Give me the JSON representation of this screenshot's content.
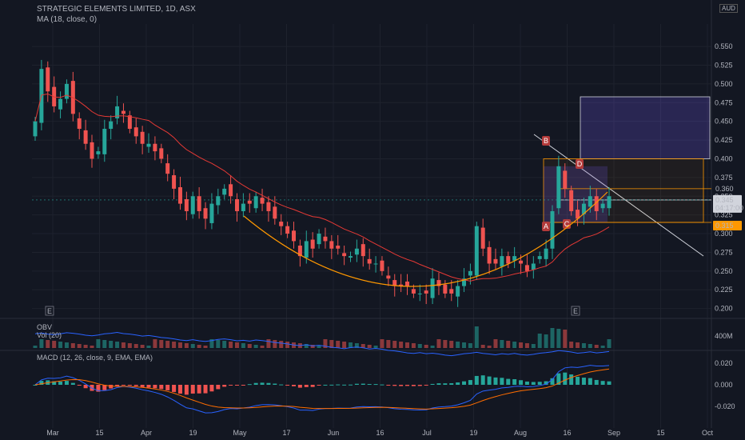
{
  "header": {
    "symbol_line": "STRATEGIC ELEMENTS LIMITED, 1D, ASX",
    "ma_line": "MA (18, close, 0)",
    "obv_label": "OBV",
    "vol_label": "Vol (20)",
    "macd_label": "MACD (12, 26, close, 9, EMA, EMA)",
    "currency": "AUD"
  },
  "price_badges": {
    "high": "0.360",
    "last": "0.345",
    "countdown": "04:17:00",
    "low": "0.315"
  },
  "pattern_labels": [
    "A",
    "B",
    "C",
    "D"
  ],
  "event_markers": [
    "E",
    "E"
  ],
  "pane_ticks": {
    "volume": [
      "400M"
    ],
    "macd": [
      "0.020",
      "0.000",
      "-0.020"
    ]
  },
  "chart_data": {
    "type": "candlestick",
    "title": "STRATEGIC ELEMENTS LIMITED, 1D, ASX",
    "y_axis": {
      "min": 0.19,
      "max": 0.58,
      "ticks": [
        "0.200",
        "0.225",
        "0.250",
        "0.275",
        "0.300",
        "0.325",
        "0.350",
        "0.375",
        "0.400",
        "0.425",
        "0.450",
        "0.475",
        "0.500",
        "0.525",
        "0.550"
      ]
    },
    "x_axis": {
      "ticks": [
        "Mar",
        "15",
        "Apr",
        "19",
        "May",
        "17",
        "Jun",
        "16",
        "Jul",
        "19",
        "Aug",
        "16",
        "Sep",
        "15",
        "Oct"
      ]
    },
    "closes": [
      0.45,
      0.52,
      0.49,
      0.47,
      0.48,
      0.5,
      0.46,
      0.44,
      0.42,
      0.4,
      0.41,
      0.44,
      0.45,
      0.47,
      0.46,
      0.44,
      0.43,
      0.42,
      0.42,
      0.41,
      0.4,
      0.38,
      0.36,
      0.34,
      0.33,
      0.35,
      0.33,
      0.32,
      0.34,
      0.35,
      0.36,
      0.35,
      0.33,
      0.34,
      0.34,
      0.35,
      0.34,
      0.33,
      0.32,
      0.31,
      0.3,
      0.29,
      0.27,
      0.29,
      0.28,
      0.3,
      0.29,
      0.28,
      0.28,
      0.27,
      0.27,
      0.28,
      0.27,
      0.26,
      0.26,
      0.25,
      0.24,
      0.23,
      0.23,
      0.23,
      0.22,
      0.22,
      0.22,
      0.24,
      0.23,
      0.22,
      0.22,
      0.23,
      0.24,
      0.25,
      0.31,
      0.28,
      0.26,
      0.26,
      0.27,
      0.26,
      0.27,
      0.26,
      0.25,
      0.26,
      0.27,
      0.28,
      0.33,
      0.39,
      0.36,
      0.33,
      0.32,
      0.34,
      0.35,
      0.33,
      0.34,
      0.35
    ],
    "ma_period": 18,
    "levels": [
      0.36,
      0.345,
      0.315
    ],
    "annotations": [
      "A",
      "B",
      "C",
      "D"
    ]
  }
}
